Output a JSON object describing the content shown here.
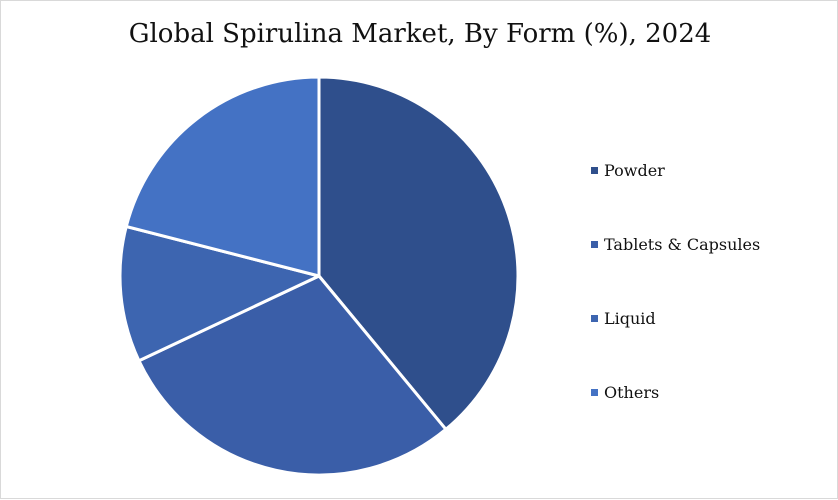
{
  "chart_data": {
    "type": "pie",
    "title": "Global Spirulina Market, By Form (%), 2024",
    "categories": [
      "Powder",
      "Tablets & Capsules",
      "Liquid",
      "Others"
    ],
    "values": [
      39,
      29,
      11,
      21
    ],
    "colors": [
      "#2f4f8c",
      "#3a5ea8",
      "#3d65b0",
      "#4472c4"
    ],
    "slice_border_color": "#ffffff",
    "start_angle_deg": 0,
    "direction": "clockwise",
    "legend": "right"
  }
}
